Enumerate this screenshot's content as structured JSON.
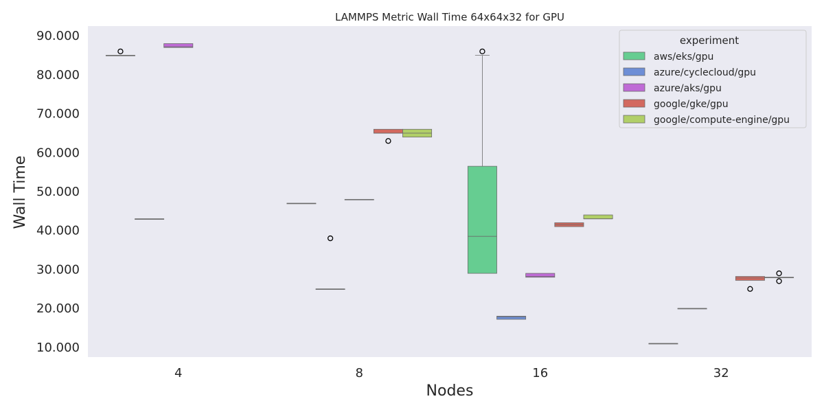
{
  "chart_data": {
    "type": "box",
    "title": "LAMMPS Metric Wall Time 64x64x32 for GPU",
    "xlabel": "Nodes",
    "ylabel": "Wall Time",
    "categories": [
      "4",
      "8",
      "16",
      "32"
    ],
    "ylim": [
      7.5,
      92.5
    ],
    "yticks": [
      10,
      20,
      30,
      40,
      50,
      60,
      70,
      80,
      90
    ],
    "ytick_labels": [
      "10.000",
      "20.000",
      "30.000",
      "40.000",
      "50.000",
      "60.000",
      "70.000",
      "80.000",
      "90.000"
    ],
    "grid": false,
    "legend": {
      "title": "experiment",
      "position": "top-right"
    },
    "series": [
      {
        "name": "aws/eks/gpu",
        "color": "#66cd91",
        "boxes": [
          {
            "category": "4",
            "q1": 85,
            "median": 85,
            "q3": 85,
            "whisker_low": 85,
            "whisker_high": 85,
            "outliers": [
              86
            ]
          },
          {
            "category": "8",
            "q1": 47,
            "median": 47,
            "q3": 47,
            "whisker_low": 47,
            "whisker_high": 47,
            "outliers": []
          },
          {
            "category": "16",
            "q1": 29,
            "median": 38.5,
            "q3": 56.5,
            "whisker_low": 29,
            "whisker_high": 85,
            "outliers": [
              86
            ]
          },
          {
            "category": "32",
            "q1": 11,
            "median": 11,
            "q3": 11,
            "whisker_low": 11,
            "whisker_high": 11,
            "outliers": []
          }
        ]
      },
      {
        "name": "azure/cyclecloud/gpu",
        "color": "#6d8ed6",
        "boxes": [
          {
            "category": "4",
            "q1": 43,
            "median": 43,
            "q3": 43,
            "whisker_low": 43,
            "whisker_high": 43,
            "outliers": []
          },
          {
            "category": "8",
            "q1": 25,
            "median": 25,
            "q3": 25,
            "whisker_low": 25,
            "whisker_high": 25,
            "outliers": [
              38
            ]
          },
          {
            "category": "16",
            "q1": 17.2,
            "median": 17.8,
            "q3": 18,
            "whisker_low": 17.2,
            "whisker_high": 18,
            "outliers": []
          },
          {
            "category": "32",
            "q1": 20,
            "median": 20,
            "q3": 20,
            "whisker_low": 20,
            "whisker_high": 20,
            "outliers": []
          }
        ]
      },
      {
        "name": "azure/aks/gpu",
        "color": "#bf6bd6",
        "boxes": [
          {
            "category": "4",
            "q1": 87,
            "median": 87.2,
            "q3": 88,
            "whisker_low": 87,
            "whisker_high": 88,
            "outliers": []
          },
          {
            "category": "8",
            "q1": 48,
            "median": 48,
            "q3": 48,
            "whisker_low": 48,
            "whisker_high": 48,
            "outliers": []
          },
          {
            "category": "16",
            "q1": 28,
            "median": 28.2,
            "q3": 29,
            "whisker_low": 28,
            "whisker_high": 29,
            "outliers": []
          },
          {
            "category": "32",
            "q1": null
          }
        ]
      },
      {
        "name": "google/gke/gpu",
        "color": "#d3695f",
        "boxes": [
          {
            "category": "4",
            "q1": null
          },
          {
            "category": "8",
            "q1": 65,
            "median": 65,
            "q3": 66,
            "whisker_low": 65,
            "whisker_high": 66,
            "outliers": [
              63
            ]
          },
          {
            "category": "16",
            "q1": 41,
            "median": 41.5,
            "q3": 42,
            "whisker_low": 41,
            "whisker_high": 42,
            "outliers": []
          },
          {
            "category": "32",
            "q1": 27.2,
            "median": 27.8,
            "q3": 28.2,
            "whisker_low": 27.2,
            "whisker_high": 28.2,
            "outliers": [
              25
            ]
          }
        ]
      },
      {
        "name": "google/compute-engine/gpu",
        "color": "#b1cf68",
        "boxes": [
          {
            "category": "4",
            "q1": null
          },
          {
            "category": "8",
            "q1": 64,
            "median": 65,
            "q3": 66,
            "whisker_low": 64,
            "whisker_high": 66,
            "outliers": []
          },
          {
            "category": "16",
            "q1": 43,
            "median": 43,
            "q3": 44,
            "whisker_low": 43,
            "whisker_high": 44,
            "outliers": []
          },
          {
            "category": "32",
            "q1": 28,
            "median": 28,
            "q3": 28,
            "whisker_low": 28,
            "whisker_high": 28,
            "outliers": [
              27,
              29
            ]
          }
        ]
      }
    ]
  }
}
